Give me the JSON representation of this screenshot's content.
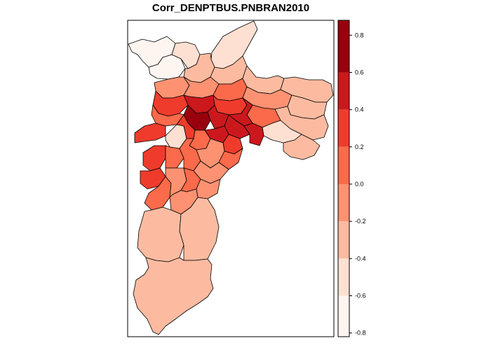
{
  "map": {
    "title": "Corr_DENPTBUS.PNBRAN2010",
    "legend": {
      "ticks": [
        "0.8",
        "0.6",
        "0.4",
        "0.2",
        "0.0",
        "-0.2",
        "-0.4",
        "-0.6",
        "-0.8"
      ],
      "bins": [
        {
          "min": 0.6,
          "max": 0.8,
          "color": "#99000d"
        },
        {
          "min": 0.4,
          "max": 0.6,
          "color": "#cb181d"
        },
        {
          "min": 0.2,
          "max": 0.4,
          "color": "#ef3b2c"
        },
        {
          "min": 0.0,
          "max": 0.2,
          "color": "#fb6a4a"
        },
        {
          "min": -0.2,
          "max": 0.0,
          "color": "#fc9272"
        },
        {
          "min": -0.4,
          "max": -0.2,
          "color": "#fcbba1"
        },
        {
          "min": -0.6,
          "max": -0.4,
          "color": "#fee0d2"
        },
        {
          "min": -0.8,
          "max": -0.6,
          "color": "#fff5f0"
        }
      ]
    }
  }
}
